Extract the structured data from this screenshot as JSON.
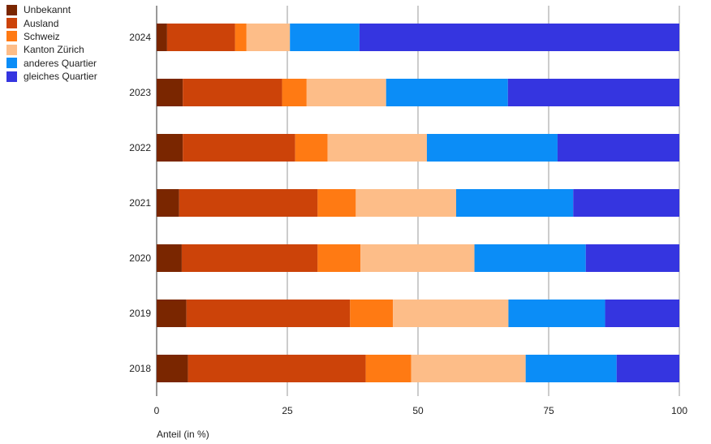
{
  "chart_data": {
    "type": "bar",
    "orientation": "horizontal",
    "stacked": true,
    "categories": [
      "2024",
      "2023",
      "2022",
      "2021",
      "2020",
      "2019",
      "2018"
    ],
    "series": [
      {
        "name": "Unbekannt",
        "color": "#7a2600",
        "values": [
          2,
          5,
          5,
          4.3,
          4.8,
          5.7,
          6
        ]
      },
      {
        "name": "Ausland",
        "color": "#cc4309",
        "values": [
          13,
          19,
          21.5,
          26.5,
          26,
          31.3,
          34
        ]
      },
      {
        "name": "Schweiz",
        "color": "#ff7a13",
        "values": [
          2.2,
          4.7,
          6.2,
          7.3,
          8.2,
          8.2,
          8.7
        ]
      },
      {
        "name": "Kanton Zürich",
        "color": "#fdbd88",
        "values": [
          8.3,
          15.2,
          19,
          19.2,
          21.8,
          22.1,
          21.9
        ]
      },
      {
        "name": "anderes Quartier",
        "color": "#0b8df7",
        "values": [
          13.3,
          23.3,
          25,
          22.4,
          21.3,
          18.5,
          17.4
        ]
      },
      {
        "name": "gleiches Quartier",
        "color": "#3535e0",
        "values": [
          61.2,
          32.8,
          23.3,
          20.3,
          17.9,
          14.2,
          12
        ]
      }
    ],
    "xlim": [
      0,
      100
    ],
    "xticks": [
      0,
      25,
      50,
      75,
      100
    ],
    "xlabel": "Anteil (in %)",
    "ylabel": "",
    "title": "",
    "grid": "vertical",
    "legend_position": "top-left"
  }
}
